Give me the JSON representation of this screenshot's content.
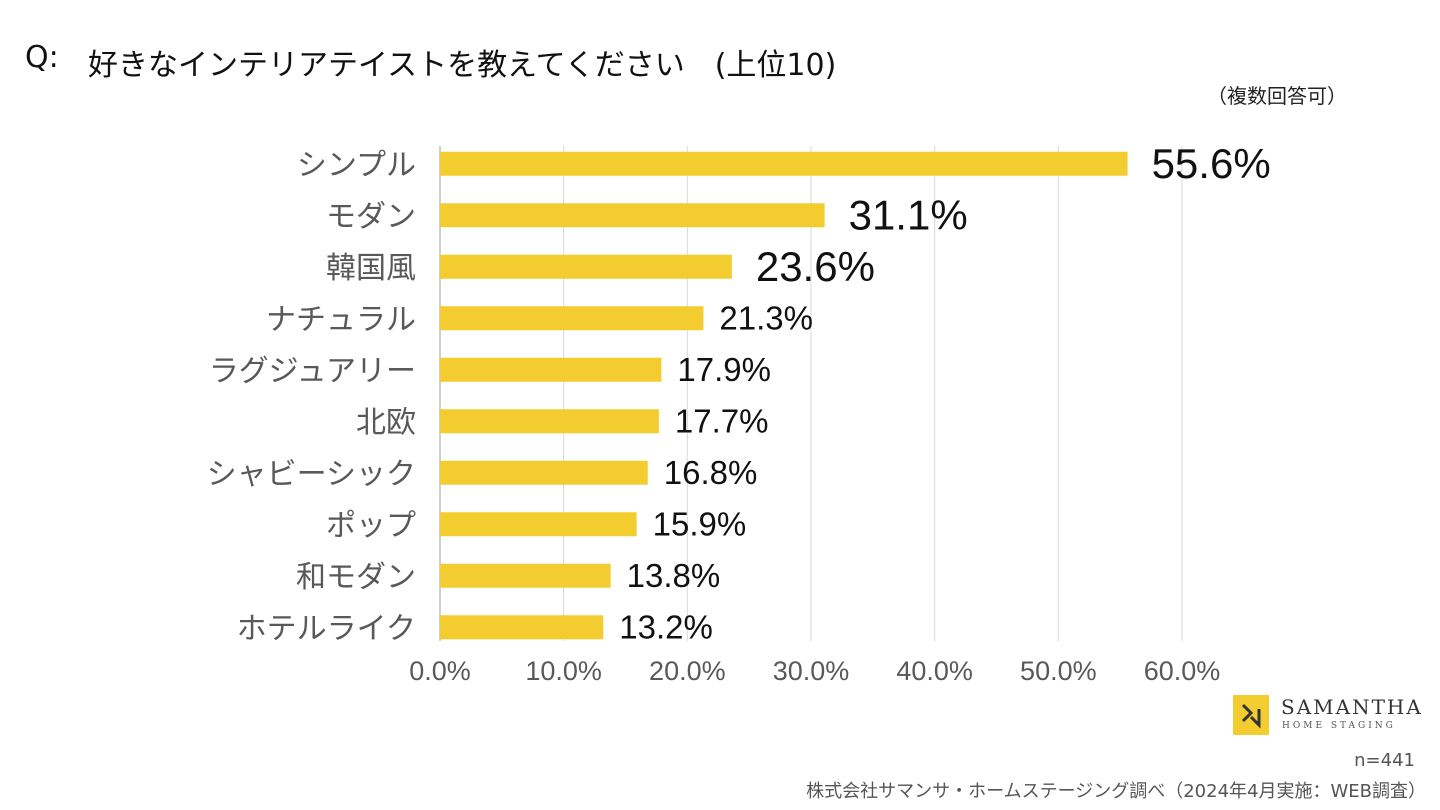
{
  "header": {
    "q_label": "Q:",
    "title": "好きなインテリアテイストを教えてください　(上位10)",
    "subtitle": "（複数回答可）"
  },
  "chart_data": {
    "type": "bar",
    "orientation": "horizontal",
    "categories": [
      "シンプル",
      "モダン",
      "韓国風",
      "ナチュラル",
      "ラグジュアリー",
      "北欧",
      "シャビーシック",
      "ポップ",
      "和モダン",
      "ホテルライク"
    ],
    "values": [
      55.6,
      31.1,
      23.6,
      21.3,
      17.9,
      17.7,
      16.8,
      15.9,
      13.8,
      13.2
    ],
    "data_labels": [
      "55.6%",
      "31.1%",
      "23.6%",
      "21.3%",
      "17.9%",
      "17.7%",
      "16.8%",
      "15.9%",
      "13.8%",
      "13.2%"
    ],
    "xlim": [
      0,
      60
    ],
    "x_ticks": [
      0,
      10,
      20,
      30,
      40,
      50,
      60
    ],
    "x_tick_labels": [
      "0.0%",
      "10.0%",
      "20.0%",
      "30.0%",
      "40.0%",
      "50.0%",
      "60.0%"
    ],
    "grid": "vertical",
    "bar_color": "#f3cc2f",
    "grid_color": "#d9d9d9",
    "axis_color": "#bfbfbf",
    "label_color": "#595959"
  },
  "logo": {
    "name": "SAMANTHA",
    "sub": "HOME STAGING"
  },
  "footer": {
    "sample": "n=441",
    "source": "株式会社サマンサ・ホームステージング調べ（2024年4月実施：WEB調査）"
  }
}
